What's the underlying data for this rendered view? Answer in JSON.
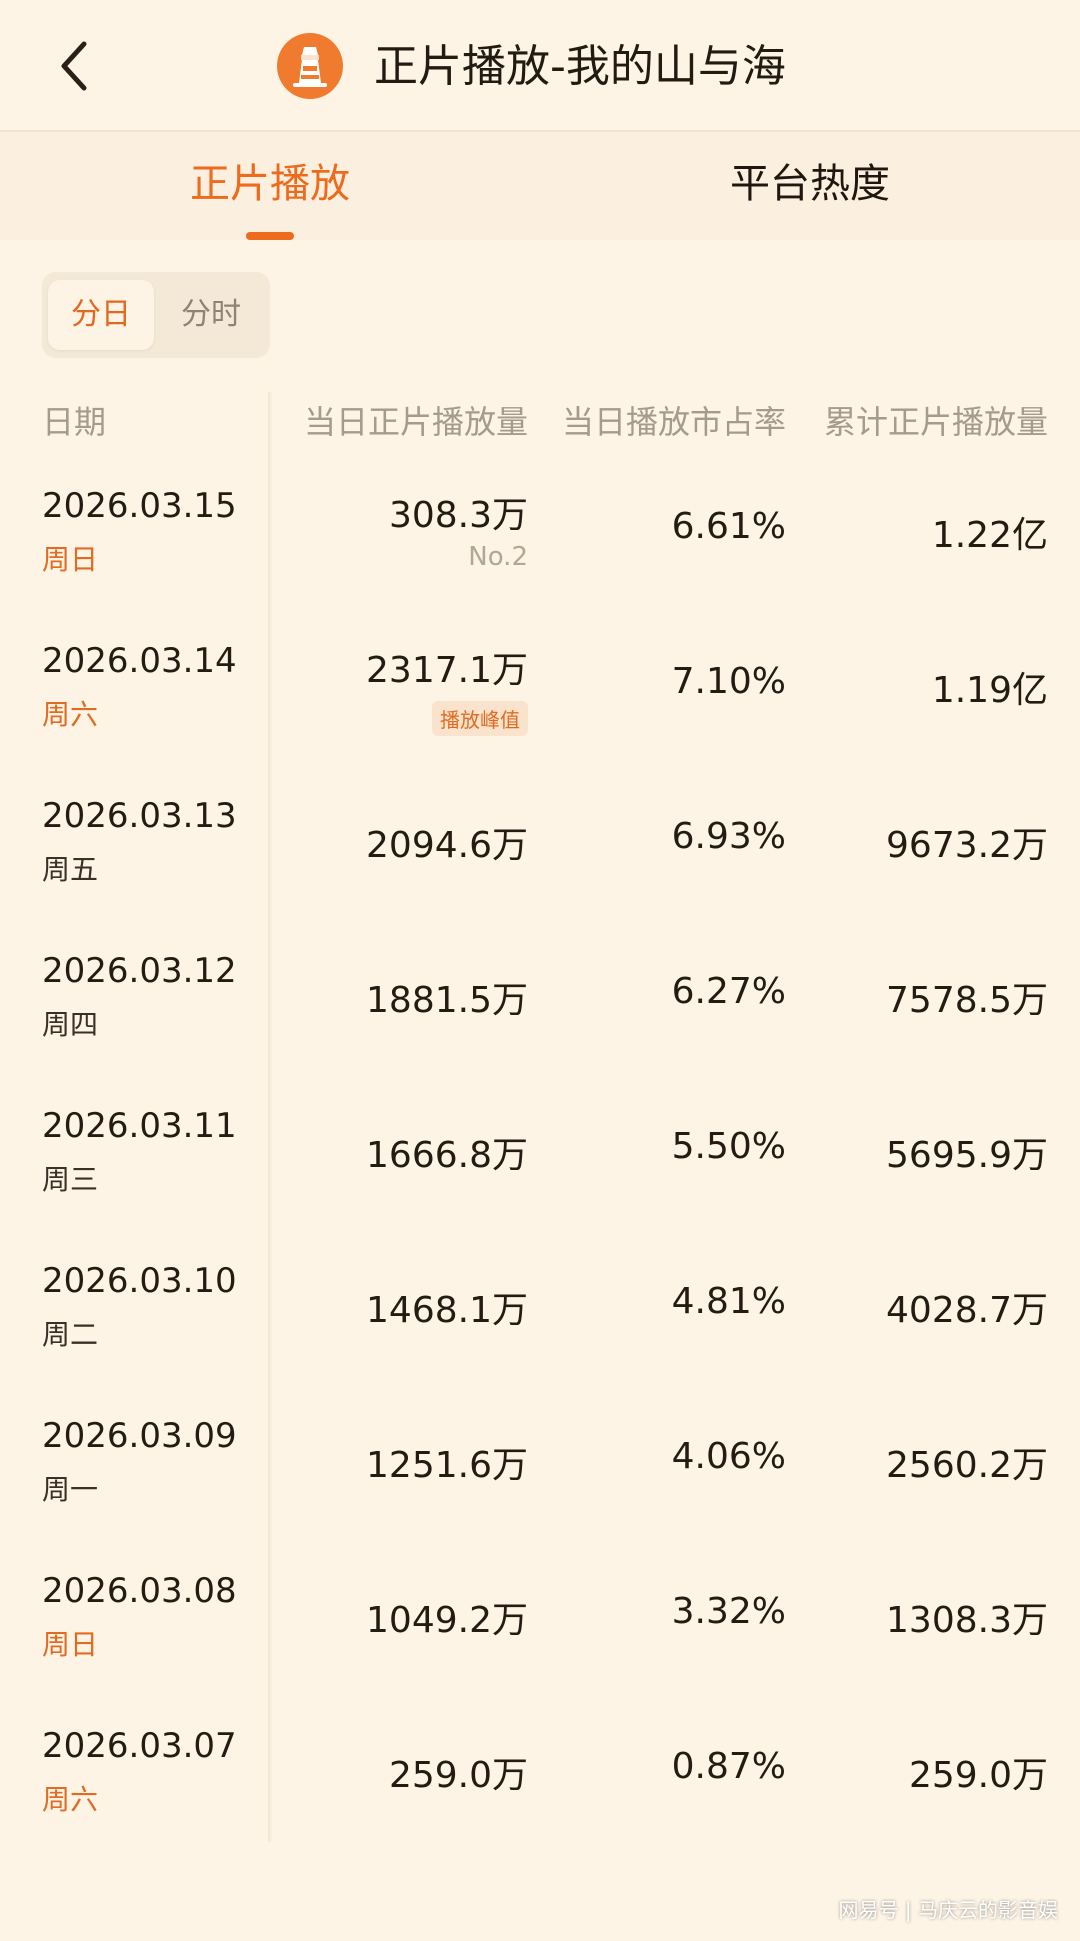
{
  "header": {
    "title": "正片播放-我的山与海",
    "back_icon": "chevron-left-icon",
    "app_icon": "lighthouse-app-icon",
    "accent": "#ee6a1c"
  },
  "tabs": [
    {
      "label": "正片播放",
      "active": true
    },
    {
      "label": "平台热度",
      "active": false
    }
  ],
  "segmented": {
    "day": "分日",
    "hour": "分时",
    "selected": "分日"
  },
  "columns": {
    "date": "日期",
    "daily_plays": "当日正片播放量",
    "market_share": "当日播放市占率",
    "cumulative": "累计正片播放量"
  },
  "rows": [
    {
      "date": "2026.03.15",
      "weekday": "周日",
      "daily": "308.3万",
      "tag": "No.2",
      "share": "6.61%",
      "cumulative": "1.22亿"
    },
    {
      "date": "2026.03.14",
      "weekday": "周六",
      "daily": "2317.1万",
      "tag": "播放峰值",
      "share": "7.10%",
      "cumulative": "1.19亿"
    },
    {
      "date": "2026.03.13",
      "weekday": "周五",
      "daily": "2094.6万",
      "tag": "",
      "share": "6.93%",
      "cumulative": "9673.2万"
    },
    {
      "date": "2026.03.12",
      "weekday": "周四",
      "daily": "1881.5万",
      "tag": "",
      "share": "6.27%",
      "cumulative": "7578.5万"
    },
    {
      "date": "2026.03.11",
      "weekday": "周三",
      "daily": "1666.8万",
      "tag": "",
      "share": "5.50%",
      "cumulative": "5695.9万"
    },
    {
      "date": "2026.03.10",
      "weekday": "周二",
      "daily": "1468.1万",
      "tag": "",
      "share": "4.81%",
      "cumulative": "4028.7万"
    },
    {
      "date": "2026.03.09",
      "weekday": "周一",
      "daily": "1251.6万",
      "tag": "",
      "share": "4.06%",
      "cumulative": "2560.2万"
    },
    {
      "date": "2026.03.08",
      "weekday": "周日",
      "daily": "1049.2万",
      "tag": "",
      "share": "3.32%",
      "cumulative": "1308.3万"
    },
    {
      "date": "2026.03.07",
      "weekday": "周六",
      "daily": "259.0万",
      "tag": "",
      "share": "0.87%",
      "cumulative": "259.0万"
    }
  ],
  "watermark": "网易号 | 马庆云的影音娱"
}
